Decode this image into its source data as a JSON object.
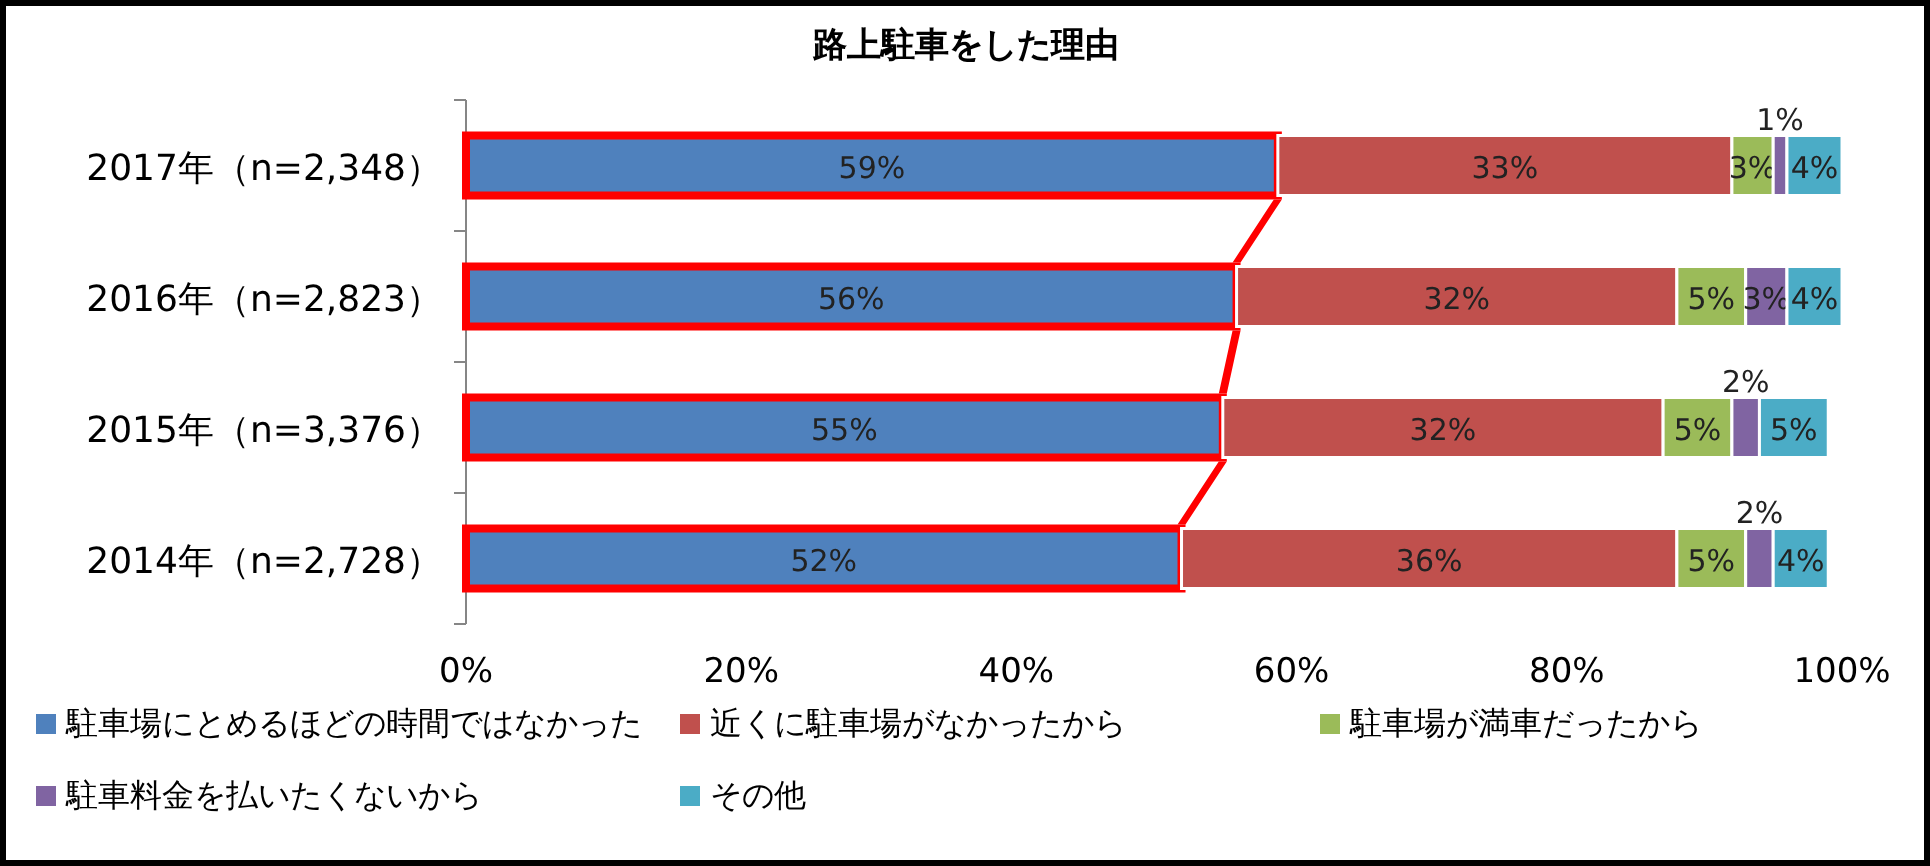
{
  "chart_data": {
    "type": "bar",
    "orientation": "horizontal",
    "stacked": true,
    "title": "路上駐車をした理由",
    "categories": [
      "2017年（n=2,348）",
      "2016年（n=2,823）",
      "2015年（n=3,376）",
      "2014年（n=2,728）"
    ],
    "series": [
      {
        "name": "駐車場にとめるほどの時間ではなかった",
        "color": "#4f81bd",
        "values": [
          59,
          56,
          55,
          52
        ],
        "value_labels": [
          "59%",
          "56%",
          "55%",
          "52%"
        ]
      },
      {
        "name": "近くに駐車場がなかったから",
        "color": "#c0504d",
        "values": [
          33,
          32,
          32,
          36
        ],
        "value_labels": [
          "33%",
          "32%",
          "32%",
          "36%"
        ]
      },
      {
        "name": "駐車場が満車だったから",
        "color": "#9bbb59",
        "values": [
          3,
          5,
          5,
          5
        ],
        "value_labels": [
          "3%",
          "5%",
          "5%",
          "5%"
        ]
      },
      {
        "name": "駐車料金を払いたくないから",
        "color": "#8064a2",
        "values": [
          1,
          3,
          2,
          2
        ],
        "value_labels": [
          "1%",
          "3%",
          "2%",
          "2%"
        ]
      },
      {
        "name": "その他",
        "color": "#4bacc6",
        "values": [
          4,
          4,
          5,
          4
        ],
        "value_labels": [
          "4%",
          "4%",
          "5%",
          "4%"
        ]
      }
    ],
    "xlim": [
      0,
      100
    ],
    "xticks": [
      {
        "value": 0,
        "label": "0%"
      },
      {
        "value": 20,
        "label": "20%"
      },
      {
        "value": 40,
        "label": "40%"
      },
      {
        "value": 60,
        "label": "60%"
      },
      {
        "value": 80,
        "label": "80%"
      },
      {
        "value": 100,
        "label": "100%"
      }
    ],
    "legend": "bottom",
    "grid": false
  }
}
